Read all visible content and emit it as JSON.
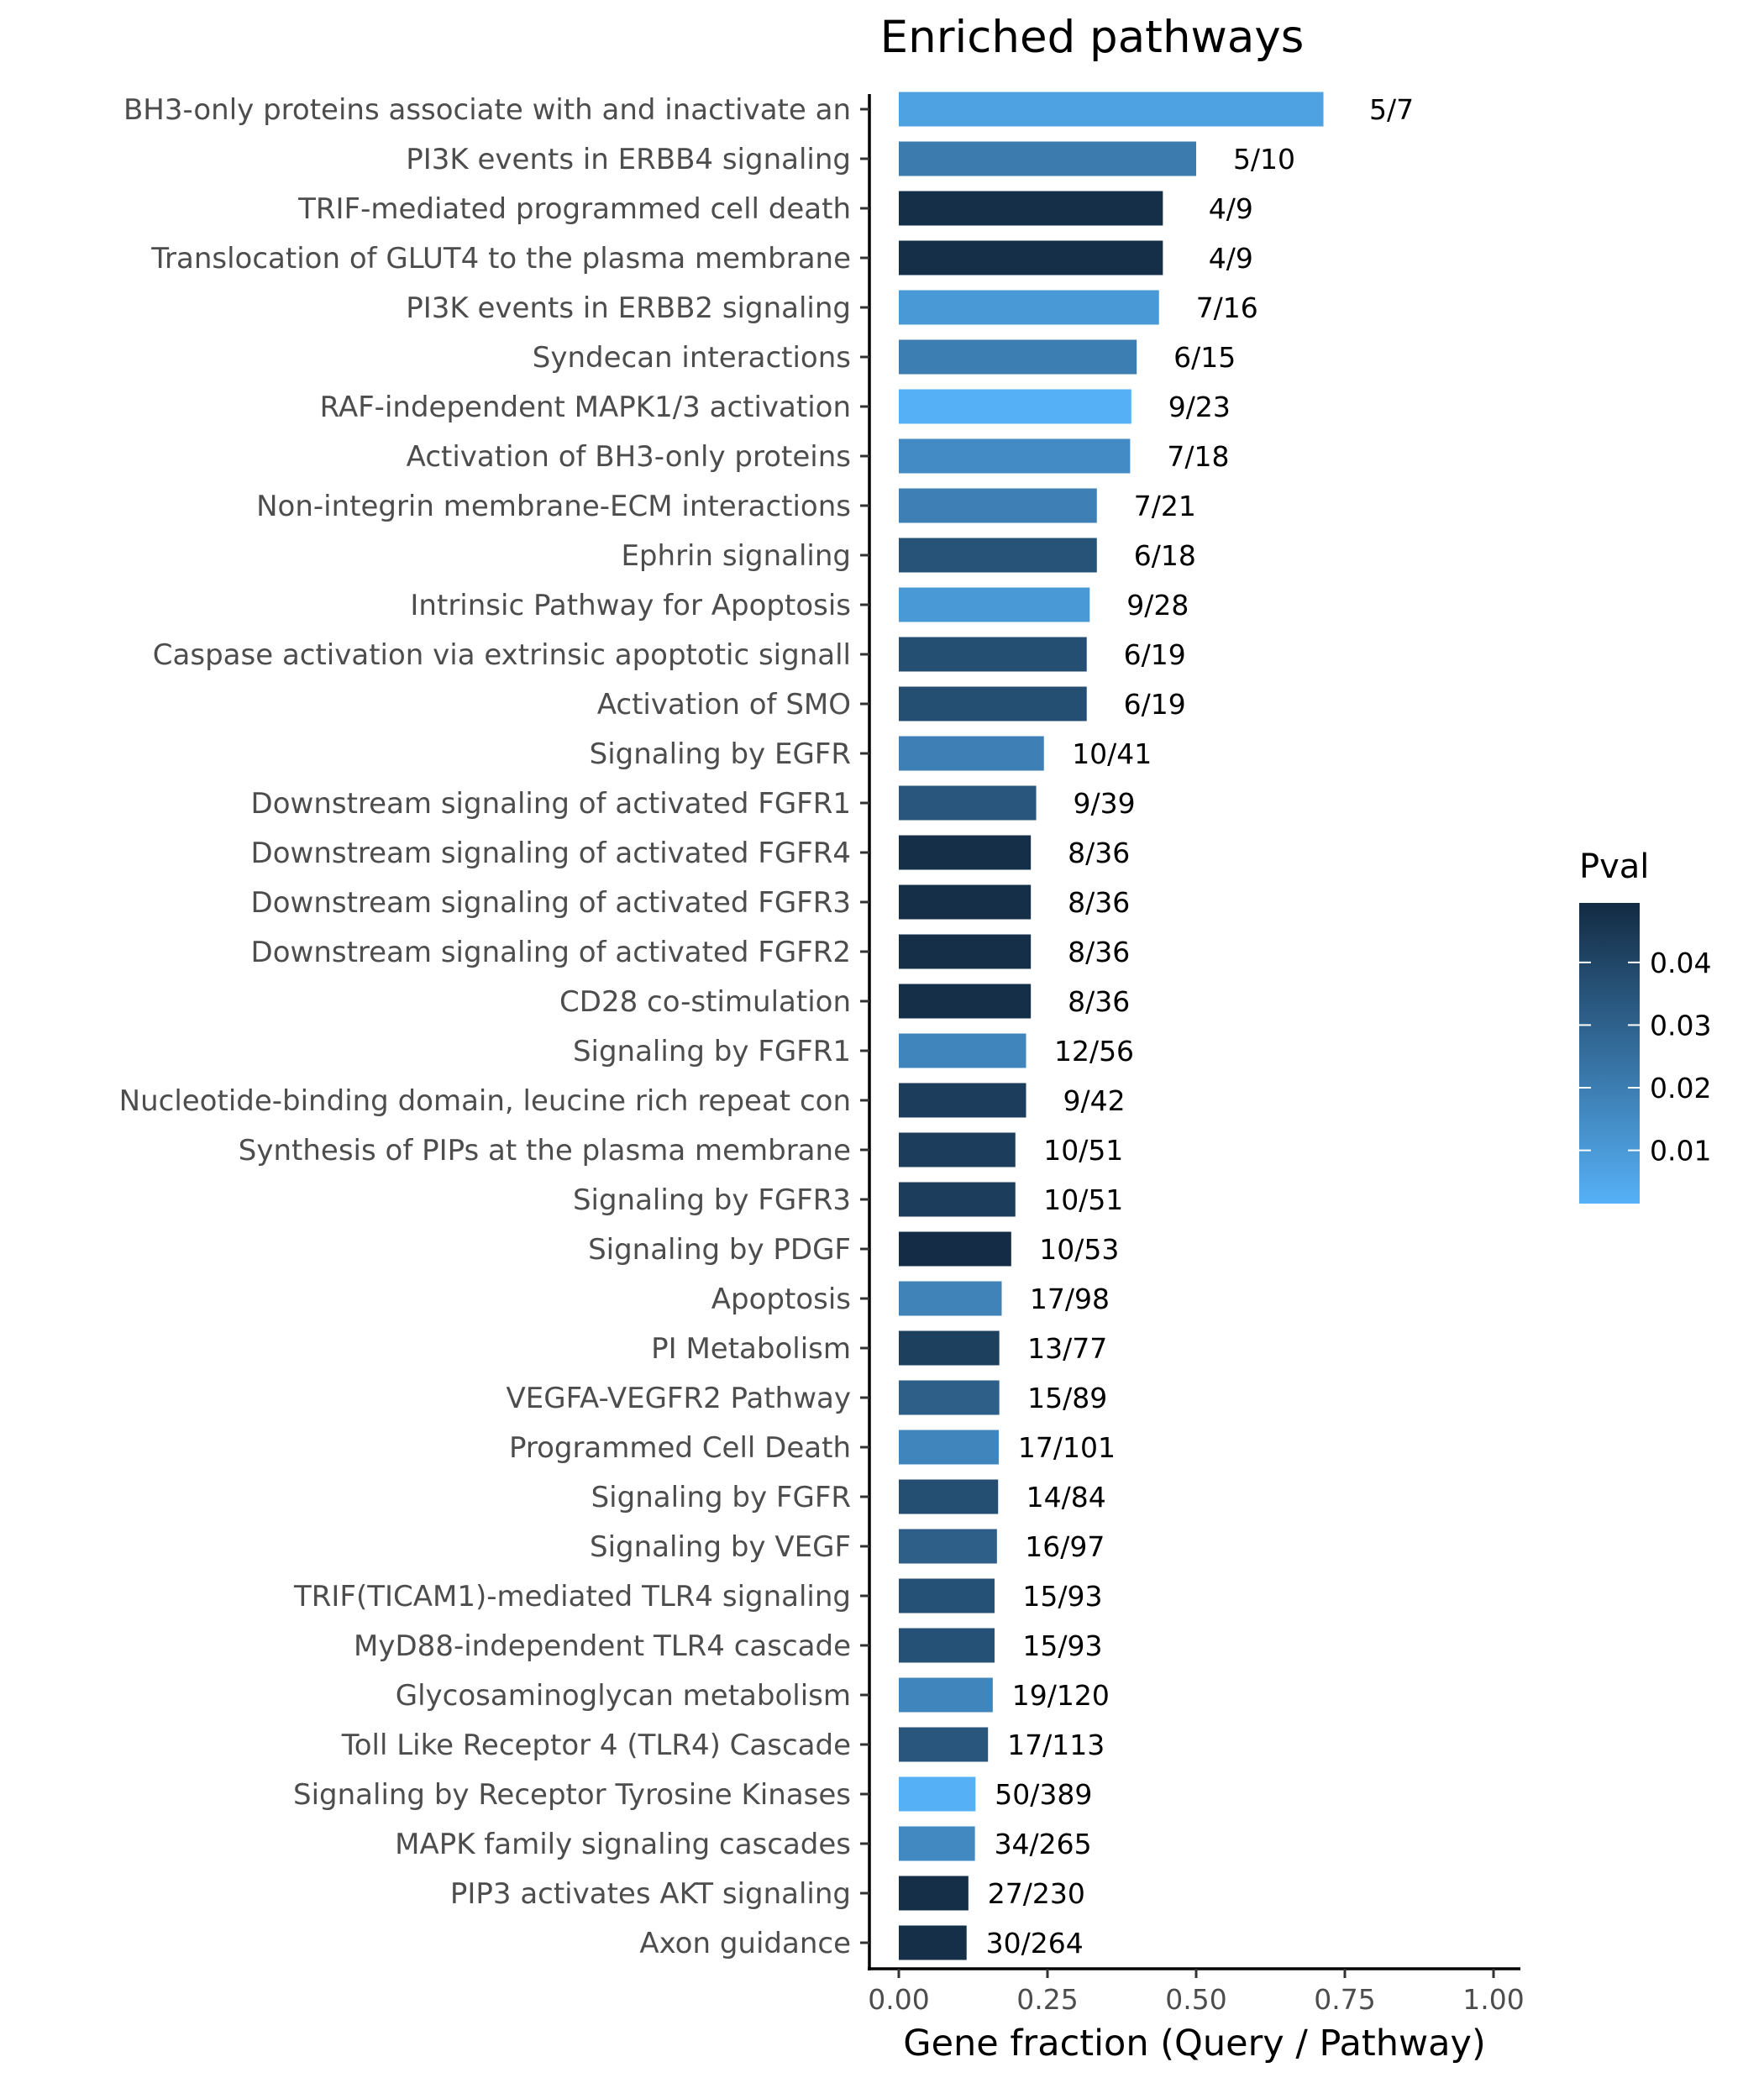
{
  "chart_data": {
    "type": "bar",
    "orientation": "horizontal",
    "title": "Enriched pathways",
    "xlabel": "Gene fraction (Query / Pathway)",
    "ylabel": "",
    "xlim": [
      0,
      1
    ],
    "x_ticks": [
      0,
      0.25,
      0.5,
      0.75,
      1
    ],
    "x_tick_labels": [
      "0.00",
      "0.25",
      "0.50",
      "0.75",
      "1.00"
    ],
    "grid": false,
    "legend": {
      "title": "Pval",
      "placement": "right",
      "type": "colorbar",
      "min": 0.0015,
      "max": 0.0495,
      "ticks": [
        0.01,
        0.02,
        0.03,
        0.04
      ],
      "tick_labels": [
        "0.01",
        "0.02",
        "0.03",
        "0.04"
      ],
      "color_low": "#56B1F7",
      "color_high": "#132B43"
    },
    "categories": [
      "BH3-only proteins associate with and inactivate an",
      "PI3K events in ERBB4 signaling",
      "TRIF-mediated programmed cell death",
      "Translocation of GLUT4 to the plasma membrane",
      "PI3K events in ERBB2 signaling",
      "Syndecan interactions",
      "RAF-independent MAPK1/3 activation",
      "Activation of BH3-only proteins",
      "Non-integrin membrane-ECM interactions",
      "Ephrin signaling",
      "Intrinsic Pathway for Apoptosis",
      "Caspase activation via extrinsic apoptotic signall",
      "Activation of SMO",
      "Signaling by EGFR",
      "Downstream signaling of activated FGFR1",
      "Downstream signaling of activated FGFR4",
      "Downstream signaling of activated FGFR3",
      "Downstream signaling of activated FGFR2",
      "CD28 co-stimulation",
      "Signaling by FGFR1",
      "Nucleotide-binding domain, leucine rich repeat con",
      "Synthesis of PIPs at the plasma membrane",
      "Signaling by FGFR3",
      "Signaling by PDGF",
      "Apoptosis",
      "PI Metabolism",
      "VEGFA-VEGFR2 Pathway",
      "Programmed Cell Death",
      "Signaling by FGFR",
      "Signaling by VEGF",
      "TRIF(TICAM1)-mediated TLR4 signaling ",
      "MyD88-independent TLR4 cascade ",
      "Glycosaminoglycan metabolism",
      "Toll Like Receptor 4 (TLR4) Cascade",
      "Signaling by Receptor Tyrosine Kinases",
      "MAPK family signaling cascades",
      "PIP3 activates AKT signaling",
      "Axon guidance"
    ],
    "values": [
      0.714,
      0.5,
      0.444,
      0.444,
      0.4375,
      0.4,
      0.391,
      0.389,
      0.333,
      0.333,
      0.321,
      0.316,
      0.316,
      0.244,
      0.231,
      0.222,
      0.222,
      0.222,
      0.222,
      0.214,
      0.214,
      0.196,
      0.196,
      0.189,
      0.173,
      0.169,
      0.169,
      0.168,
      0.167,
      0.165,
      0.161,
      0.161,
      0.158,
      0.15,
      0.129,
      0.128,
      0.117,
      0.114
    ],
    "bar_labels": [
      "5/7",
      "5/10",
      "4/9",
      "4/9",
      "7/16",
      "6/15",
      "9/23",
      "7/18",
      "7/21",
      "6/18",
      "9/28",
      "6/19",
      "6/19",
      "10/41",
      "9/39",
      "8/36",
      "8/36",
      "8/36",
      "8/36",
      "12/56",
      "9/42",
      "10/51",
      "10/51",
      "10/53",
      "17/98",
      "13/77",
      "15/89",
      "17/101",
      "14/84",
      "16/97",
      "15/93",
      "15/93",
      "19/120",
      "17/113",
      "50/389",
      "34/265",
      "27/230",
      "30/264"
    ],
    "pvals": [
      0.007,
      0.021,
      0.048,
      0.048,
      0.01,
      0.02,
      0.002,
      0.015,
      0.019,
      0.035,
      0.01,
      0.037,
      0.037,
      0.019,
      0.034,
      0.048,
      0.048,
      0.048,
      0.048,
      0.017,
      0.043,
      0.043,
      0.043,
      0.049,
      0.018,
      0.042,
      0.031,
      0.017,
      0.037,
      0.031,
      0.036,
      0.036,
      0.017,
      0.034,
      0.002,
      0.016,
      0.048,
      0.048
    ]
  }
}
